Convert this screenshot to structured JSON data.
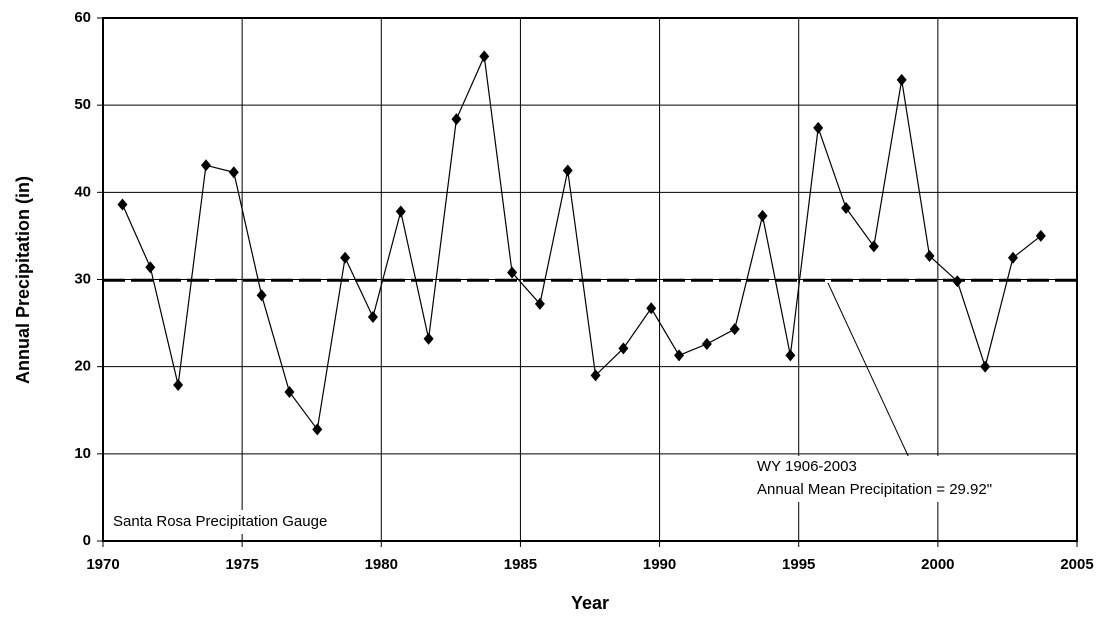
{
  "chart_data": {
    "type": "line",
    "x_label": "Year",
    "y_label": "Annual Precipitation (in)",
    "x": [
      1970.7,
      1971.7,
      1972.7,
      1973.7,
      1974.7,
      1975.7,
      1976.7,
      1977.7,
      1978.7,
      1979.7,
      1980.7,
      1981.7,
      1982.7,
      1983.7,
      1984.7,
      1985.7,
      1986.7,
      1987.7,
      1988.7,
      1989.7,
      1990.7,
      1991.7,
      1992.7,
      1993.7,
      1994.7,
      1995.7,
      1996.7,
      1997.7,
      1998.7,
      1999.7,
      2000.7,
      2001.7,
      2002.7,
      2003.7
    ],
    "values": [
      38.6,
      31.4,
      17.9,
      43.1,
      42.3,
      28.2,
      17.1,
      12.8,
      32.5,
      25.7,
      37.8,
      23.2,
      48.4,
      55.6,
      30.8,
      27.2,
      42.5,
      19.0,
      22.1,
      26.7,
      21.3,
      22.6,
      24.3,
      37.3,
      21.3,
      47.4,
      38.2,
      33.8,
      52.9,
      32.7,
      29.8,
      20.0,
      32.5,
      35.0
    ],
    "color": "#000000",
    "mean": 29.92,
    "annotations": [
      "Santa Rosa Precipitation Gauge",
      "WY 1906-2003",
      "Annual Mean Precipitation = 29.92\""
    ],
    "xlim": [
      1970,
      2005
    ],
    "xticks": [
      1970,
      1975,
      1980,
      1985,
      1990,
      1995,
      2000,
      2005
    ],
    "ylim": [
      0,
      60
    ],
    "yticks": [
      0,
      10,
      20,
      30,
      40,
      50,
      60
    ],
    "grid": true
  }
}
